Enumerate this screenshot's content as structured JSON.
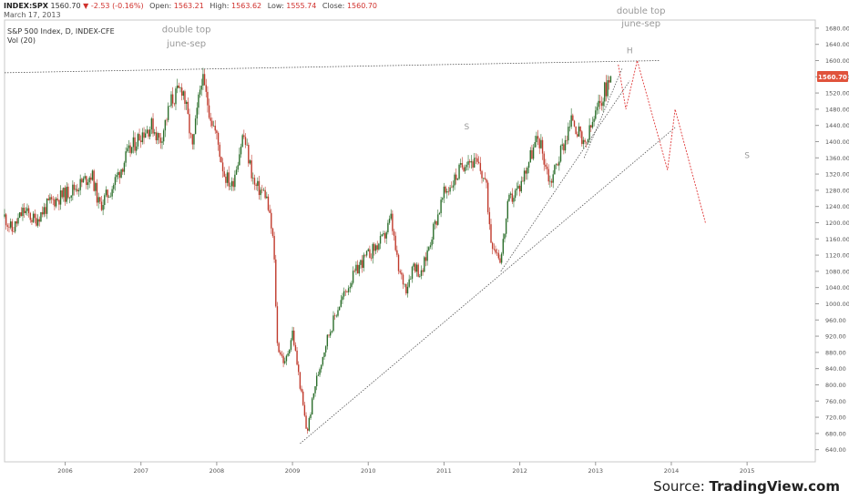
{
  "header": {
    "symbol": "INDEX:SPX",
    "last": "1560.70",
    "change": "▼ -2.53 (-0.16%)",
    "open_label": "Open:",
    "open": "1563.21",
    "high_label": "High:",
    "high": "1563.62",
    "low_label": "Low:",
    "low": "1555.74",
    "close_label": "Close:",
    "close": "1560.70",
    "date": "March 17, 2013"
  },
  "chart_title": "S&P 500 Index, D, INDEX-CFE",
  "volume_label": "Vol (20)",
  "source": {
    "prefix": "Source: ",
    "brand": "TradingView.com"
  },
  "colors": {
    "up": "#2b6e2b",
    "down": "#c0392b",
    "badge": "#e0533c",
    "projection": "#e03a3a",
    "trendline": "#555555"
  },
  "chart_data": {
    "type": "candlestick",
    "title": "S&P 500 Index, D, INDEX-CFE",
    "xlim": [
      2005.2,
      2015.9
    ],
    "ylim": [
      610,
      1700
    ],
    "x_ticks": [
      "2006",
      "2007",
      "2008",
      "2009",
      "2010",
      "2011",
      "2012",
      "2013",
      "2014",
      "2015"
    ],
    "y_ticks": [
      640,
      680,
      720,
      760,
      800,
      840,
      880,
      920,
      960,
      1000,
      1040,
      1080,
      1120,
      1160,
      1200,
      1240,
      1280,
      1320,
      1360,
      1400,
      1440,
      1480,
      1520,
      1560,
      1600,
      1640,
      1680
    ],
    "last_price": "1560.70",
    "price_path": [
      [
        2005.2,
        1215
      ],
      [
        2005.3,
        1180
      ],
      [
        2005.45,
        1230
      ],
      [
        2005.6,
        1205
      ],
      [
        2005.8,
        1250
      ],
      [
        2006.0,
        1270
      ],
      [
        2006.2,
        1295
      ],
      [
        2006.35,
        1320
      ],
      [
        2006.45,
        1240
      ],
      [
        2006.6,
        1280
      ],
      [
        2006.8,
        1360
      ],
      [
        2007.0,
        1420
      ],
      [
        2007.15,
        1440
      ],
      [
        2007.25,
        1400
      ],
      [
        2007.4,
        1500
      ],
      [
        2007.55,
        1535
      ],
      [
        2007.62,
        1455
      ],
      [
        2007.68,
        1380
      ],
      [
        2007.8,
        1560
      ],
      [
        2007.9,
        1480
      ],
      [
        2008.0,
        1410
      ],
      [
        2008.1,
        1320
      ],
      [
        2008.2,
        1290
      ],
      [
        2008.35,
        1420
      ],
      [
        2008.5,
        1290
      ],
      [
        2008.65,
        1270
      ],
      [
        2008.75,
        1150
      ],
      [
        2008.8,
        900
      ],
      [
        2008.9,
        850
      ],
      [
        2009.0,
        930
      ],
      [
        2009.1,
        800
      ],
      [
        2009.19,
        680
      ],
      [
        2009.3,
        800
      ],
      [
        2009.45,
        910
      ],
      [
        2009.6,
        990
      ],
      [
        2009.75,
        1050
      ],
      [
        2009.9,
        1100
      ],
      [
        2010.05,
        1130
      ],
      [
        2010.2,
        1160
      ],
      [
        2010.3,
        1210
      ],
      [
        2010.4,
        1080
      ],
      [
        2010.5,
        1040
      ],
      [
        2010.6,
        1100
      ],
      [
        2010.7,
        1070
      ],
      [
        2010.85,
        1180
      ],
      [
        2011.0,
        1270
      ],
      [
        2011.15,
        1310
      ],
      [
        2011.3,
        1360
      ],
      [
        2011.45,
        1340
      ],
      [
        2011.55,
        1300
      ],
      [
        2011.62,
        1160
      ],
      [
        2011.75,
        1110
      ],
      [
        2011.85,
        1250
      ],
      [
        2012.0,
        1290
      ],
      [
        2012.15,
        1370
      ],
      [
        2012.25,
        1410
      ],
      [
        2012.4,
        1300
      ],
      [
        2012.55,
        1380
      ],
      [
        2012.7,
        1460
      ],
      [
        2012.85,
        1380
      ],
      [
        2012.95,
        1440
      ],
      [
        2013.05,
        1490
      ],
      [
        2013.15,
        1540
      ],
      [
        2013.21,
        1560.7
      ]
    ],
    "annotations": [
      {
        "text": "double top",
        "x": 2007.6,
        "y": 1670
      },
      {
        "text": "june-sep",
        "x": 2007.6,
        "y": 1635
      },
      {
        "text": "double top",
        "x": 2013.6,
        "y": 1716
      },
      {
        "text": "june-sep",
        "x": 2013.6,
        "y": 1684
      },
      {
        "text": "H",
        "x": 2013.45,
        "y": 1618
      },
      {
        "text": "S",
        "x": 2011.3,
        "y": 1430
      },
      {
        "text": "S",
        "x": 2015.0,
        "y": 1360
      }
    ],
    "lines": [
      {
        "name": "resistance-line",
        "style": "dotted",
        "from": [
          2005.2,
          1570
        ],
        "to": [
          2013.85,
          1600
        ]
      },
      {
        "name": "trendline-1",
        "style": "dotted",
        "from": [
          2009.1,
          655
        ],
        "to": [
          2014.05,
          1435
        ]
      },
      {
        "name": "trendline-2",
        "style": "dotted",
        "from": [
          2011.75,
          1080
        ],
        "to": [
          2013.45,
          1550
        ]
      },
      {
        "name": "trendline-3",
        "style": "dotted",
        "from": [
          2012.85,
          1360
        ],
        "to": [
          2013.35,
          1580
        ]
      }
    ],
    "projection": [
      [
        2013.3,
        1590
      ],
      [
        2013.4,
        1480
      ],
      [
        2013.55,
        1600
      ],
      [
        2013.95,
        1330
      ],
      [
        2014.05,
        1480
      ],
      [
        2014.45,
        1200
      ]
    ]
  }
}
